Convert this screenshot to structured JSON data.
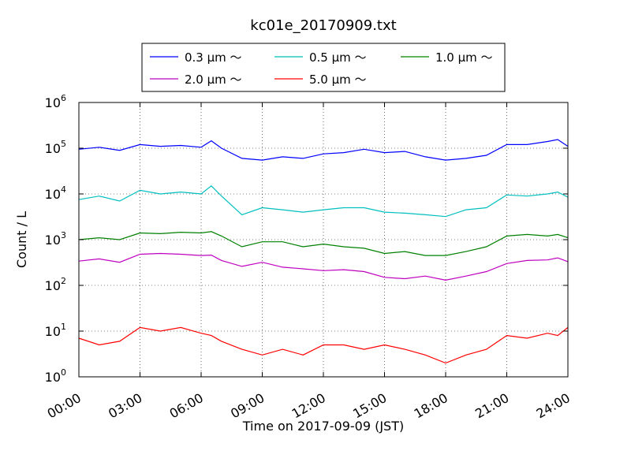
{
  "chart_data": {
    "type": "line",
    "title": "kc01e_20170909.txt",
    "xlabel": "Time on 2017-09-09 (JST)",
    "ylabel": "Count / L",
    "yscale": "log",
    "ylim": [
      1,
      1000000
    ],
    "xlim": [
      "00:00",
      "24:00"
    ],
    "x_ticks": [
      "00:00",
      "03:00",
      "06:00",
      "09:00",
      "12:00",
      "15:00",
      "18:00",
      "21:00",
      "24:00"
    ],
    "y_ticks": [
      {
        "base": "10",
        "exp": "0",
        "value": 1
      },
      {
        "base": "10",
        "exp": "1",
        "value": 10
      },
      {
        "base": "10",
        "exp": "2",
        "value": 100
      },
      {
        "base": "10",
        "exp": "3",
        "value": 1000
      },
      {
        "base": "10",
        "exp": "4",
        "value": 10000
      },
      {
        "base": "10",
        "exp": "5",
        "value": 100000
      },
      {
        "base": "10",
        "exp": "6",
        "value": 1000000
      }
    ],
    "grid": true,
    "legend_position": "top-center",
    "x_hours": [
      0,
      1,
      2,
      3,
      4,
      5,
      6,
      6.5,
      7,
      8,
      9,
      10,
      11,
      12,
      13,
      14,
      15,
      16,
      17,
      18,
      19,
      20,
      21,
      22,
      23,
      23.5,
      24
    ],
    "series": [
      {
        "name": "0.3 μm ～",
        "color": "#0000ff",
        "values": [
          95000,
          105000,
          90000,
          120000,
          110000,
          115000,
          105000,
          145000,
          100000,
          60000,
          55000,
          65000,
          60000,
          75000,
          80000,
          95000,
          80000,
          85000,
          65000,
          55000,
          60000,
          70000,
          120000,
          120000,
          140000,
          155000,
          110000
        ]
      },
      {
        "name": "0.5 μm ～",
        "color": "#00bfbf",
        "values": [
          7500,
          9000,
          7000,
          12000,
          10000,
          11000,
          10000,
          15000,
          9000,
          3500,
          5000,
          4500,
          4000,
          4500,
          5000,
          5000,
          4000,
          3800,
          3500,
          3200,
          4500,
          5000,
          9500,
          9000,
          10000,
          11000,
          8500
        ]
      },
      {
        "name": "1.0 μm ～",
        "color": "#008000",
        "values": [
          1000,
          1100,
          1000,
          1400,
          1350,
          1450,
          1400,
          1500,
          1200,
          700,
          900,
          900,
          700,
          800,
          700,
          650,
          500,
          550,
          450,
          450,
          550,
          700,
          1200,
          1300,
          1200,
          1300,
          1100
        ]
      },
      {
        "name": "2.0 μm ～",
        "color": "#bf00bf",
        "values": [
          340,
          380,
          320,
          480,
          500,
          480,
          450,
          460,
          350,
          260,
          320,
          250,
          230,
          210,
          220,
          200,
          150,
          140,
          160,
          130,
          160,
          200,
          300,
          350,
          360,
          400,
          330
        ]
      },
      {
        "name": "5.0 μm ～",
        "color": "#ff0000",
        "values": [
          7,
          5,
          6,
          12,
          10,
          12,
          9,
          8,
          6,
          4,
          3,
          4,
          3,
          5,
          5,
          4,
          5,
          4,
          3,
          2,
          3,
          4,
          8,
          7,
          9,
          8,
          12
        ]
      }
    ]
  }
}
